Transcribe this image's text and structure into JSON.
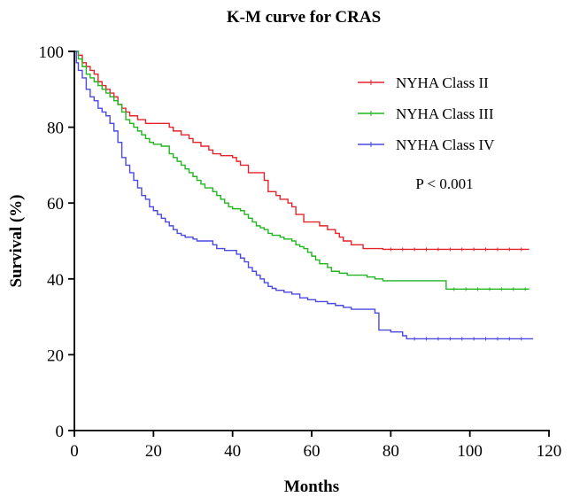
{
  "chart_data": {
    "type": "line",
    "step": true,
    "title": "K-M curve for CRAS",
    "xlabel": "Months",
    "ylabel": "Survival (%)",
    "xlim": [
      0,
      120
    ],
    "ylim": [
      0,
      100
    ],
    "xticks": [
      0,
      20,
      40,
      60,
      80,
      100,
      120
    ],
    "yticks": [
      0,
      20,
      40,
      60,
      80,
      100
    ],
    "grid": false,
    "legend_position": "top-right",
    "annotation": "P < 0.001",
    "series": [
      {
        "name": "NYHA Class II",
        "color": "#e3242b",
        "points": [
          [
            0,
            100
          ],
          [
            1,
            99
          ],
          [
            2,
            97
          ],
          [
            3,
            96
          ],
          [
            4,
            95
          ],
          [
            5,
            94
          ],
          [
            6,
            92
          ],
          [
            7,
            91
          ],
          [
            8,
            90
          ],
          [
            9,
            89
          ],
          [
            10,
            88
          ],
          [
            11,
            86
          ],
          [
            12,
            85
          ],
          [
            13,
            84
          ],
          [
            14,
            83
          ],
          [
            16,
            82
          ],
          [
            18,
            81
          ],
          [
            22,
            81
          ],
          [
            24,
            80
          ],
          [
            25,
            79
          ],
          [
            27,
            78
          ],
          [
            29,
            77
          ],
          [
            30,
            76
          ],
          [
            32,
            75
          ],
          [
            34,
            74
          ],
          [
            35,
            73
          ],
          [
            37,
            72.5
          ],
          [
            40,
            72
          ],
          [
            41,
            71
          ],
          [
            42,
            70
          ],
          [
            44,
            68
          ],
          [
            47,
            68
          ],
          [
            48,
            66
          ],
          [
            49,
            63
          ],
          [
            51,
            62
          ],
          [
            52,
            61
          ],
          [
            54,
            60
          ],
          [
            55,
            59
          ],
          [
            56,
            57
          ],
          [
            58,
            55
          ],
          [
            60,
            55
          ],
          [
            62,
            54
          ],
          [
            64,
            53
          ],
          [
            66,
            52
          ],
          [
            67,
            51
          ],
          [
            68,
            50
          ],
          [
            70,
            49
          ],
          [
            72,
            49
          ],
          [
            73,
            48
          ],
          [
            75,
            48
          ],
          [
            76,
            48
          ],
          [
            78,
            47.8
          ],
          [
            115,
            47.8
          ]
        ]
      },
      {
        "name": "NYHA Class III",
        "color": "#22b522",
        "points": [
          [
            0,
            100
          ],
          [
            1,
            98
          ],
          [
            2,
            96
          ],
          [
            3,
            94
          ],
          [
            4,
            93
          ],
          [
            5,
            92
          ],
          [
            6,
            91
          ],
          [
            7,
            90
          ],
          [
            8,
            89
          ],
          [
            9,
            88
          ],
          [
            10,
            87
          ],
          [
            11,
            86
          ],
          [
            12,
            84
          ],
          [
            13,
            82
          ],
          [
            14,
            81
          ],
          [
            15,
            80
          ],
          [
            16,
            79
          ],
          [
            17,
            78
          ],
          [
            18,
            77
          ],
          [
            19,
            76
          ],
          [
            20,
            75.5
          ],
          [
            22,
            75
          ],
          [
            24,
            73
          ],
          [
            25,
            72
          ],
          [
            26,
            71
          ],
          [
            27,
            70
          ],
          [
            28,
            69
          ],
          [
            29,
            68
          ],
          [
            30,
            67
          ],
          [
            31,
            66
          ],
          [
            32,
            65
          ],
          [
            33,
            64
          ],
          [
            35,
            63
          ],
          [
            36,
            62
          ],
          [
            37,
            61
          ],
          [
            38,
            60
          ],
          [
            39,
            59
          ],
          [
            40,
            58.5
          ],
          [
            42,
            58
          ],
          [
            43,
            57
          ],
          [
            44,
            56
          ],
          [
            45,
            55
          ],
          [
            46,
            54
          ],
          [
            47,
            53.5
          ],
          [
            48,
            53
          ],
          [
            49,
            52
          ],
          [
            50,
            51.5
          ],
          [
            52,
            51
          ],
          [
            53,
            50.5
          ],
          [
            55,
            50
          ],
          [
            56,
            49
          ],
          [
            57,
            48.5
          ],
          [
            58,
            48
          ],
          [
            59,
            47
          ],
          [
            60,
            46
          ],
          [
            61,
            45
          ],
          [
            62,
            44
          ],
          [
            64,
            43
          ],
          [
            65,
            42
          ],
          [
            67,
            41.5
          ],
          [
            69,
            41
          ],
          [
            72,
            41
          ],
          [
            74,
            40.5
          ],
          [
            75,
            40.5
          ],
          [
            76,
            40
          ],
          [
            78,
            39.5
          ],
          [
            80,
            39.5
          ],
          [
            94,
            37.3
          ],
          [
            115,
            37.3
          ]
        ]
      },
      {
        "name": "NYHA Class IV",
        "color": "#4a4ae0",
        "points": [
          [
            0,
            100
          ],
          [
            0.5,
            97
          ],
          [
            1,
            95
          ],
          [
            2,
            93
          ],
          [
            3,
            90
          ],
          [
            4,
            88
          ],
          [
            5,
            87
          ],
          [
            6,
            85
          ],
          [
            7,
            84
          ],
          [
            8,
            83
          ],
          [
            9,
            81
          ],
          [
            10,
            79
          ],
          [
            11,
            76
          ],
          [
            12,
            72
          ],
          [
            13,
            70
          ],
          [
            14,
            68
          ],
          [
            15,
            66
          ],
          [
            16,
            64
          ],
          [
            17,
            62
          ],
          [
            18,
            61
          ],
          [
            19,
            59
          ],
          [
            20,
            58
          ],
          [
            21,
            57
          ],
          [
            22,
            56
          ],
          [
            23,
            55
          ],
          [
            24,
            54
          ],
          [
            25,
            53
          ],
          [
            26,
            52
          ],
          [
            27,
            51.5
          ],
          [
            28,
            51
          ],
          [
            30,
            50.5
          ],
          [
            31,
            50
          ],
          [
            33,
            50
          ],
          [
            35,
            49
          ],
          [
            36,
            48
          ],
          [
            38,
            47.5
          ],
          [
            41,
            46.5
          ],
          [
            42,
            45.5
          ],
          [
            43,
            44.5
          ],
          [
            44,
            43
          ],
          [
            45,
            42
          ],
          [
            46,
            41
          ],
          [
            47,
            40
          ],
          [
            48,
            39
          ],
          [
            49,
            38
          ],
          [
            50,
            37.5
          ],
          [
            51,
            37
          ],
          [
            53,
            36.5
          ],
          [
            55,
            36
          ],
          [
            57,
            35
          ],
          [
            59,
            34.5
          ],
          [
            61,
            34
          ],
          [
            64,
            33.5
          ],
          [
            66,
            33
          ],
          [
            68,
            32.5
          ],
          [
            70,
            32
          ],
          [
            72,
            32
          ],
          [
            76,
            31
          ],
          [
            77,
            26.5
          ],
          [
            80,
            26
          ],
          [
            83,
            25
          ],
          [
            84,
            24.2
          ],
          [
            116,
            24.2
          ]
        ]
      }
    ]
  }
}
